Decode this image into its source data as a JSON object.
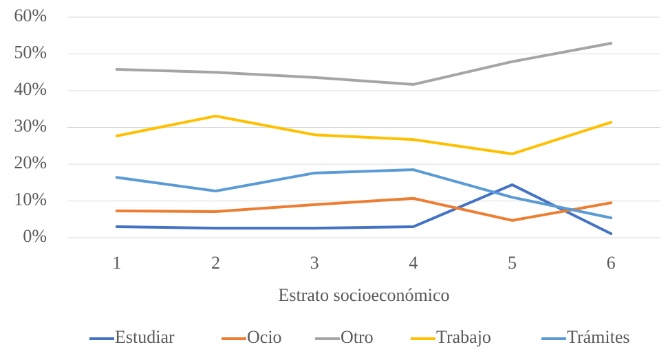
{
  "chart_data": {
    "type": "line",
    "x_label": "Estrato socioeconómico",
    "categories": [
      "1",
      "2",
      "3",
      "4",
      "5",
      "6"
    ],
    "series": [
      {
        "name": "Estudiar",
        "color": "#4472c4",
        "values": [
          3.0,
          2.6,
          2.6,
          3.0,
          14.4,
          1.1
        ]
      },
      {
        "name": "Ocio",
        "color": "#ed7d31",
        "values": [
          7.3,
          7.1,
          9.0,
          10.7,
          4.7,
          9.5
        ]
      },
      {
        "name": "Otro",
        "color": "#a5a5a5",
        "values": [
          45.8,
          45.0,
          43.6,
          41.7,
          47.9,
          52.9
        ]
      },
      {
        "name": "Trabajo",
        "color": "#ffc000",
        "values": [
          27.7,
          33.1,
          28.0,
          26.7,
          22.8,
          31.4
        ]
      },
      {
        "name": "Trámites",
        "color": "#5b9bd5",
        "values": [
          16.4,
          12.7,
          17.6,
          18.5,
          11.0,
          5.4
        ]
      }
    ],
    "ylim": [
      0,
      60
    ],
    "yticks": [
      {
        "value": 0,
        "label": "0%"
      },
      {
        "value": 10,
        "label": "10%"
      },
      {
        "value": 20,
        "label": "20%"
      },
      {
        "value": 30,
        "label": "30%"
      },
      {
        "value": 40,
        "label": "40%"
      },
      {
        "value": 50,
        "label": "50%"
      },
      {
        "value": 60,
        "label": "60%"
      }
    ],
    "grid": true,
    "legend": "bottom"
  }
}
